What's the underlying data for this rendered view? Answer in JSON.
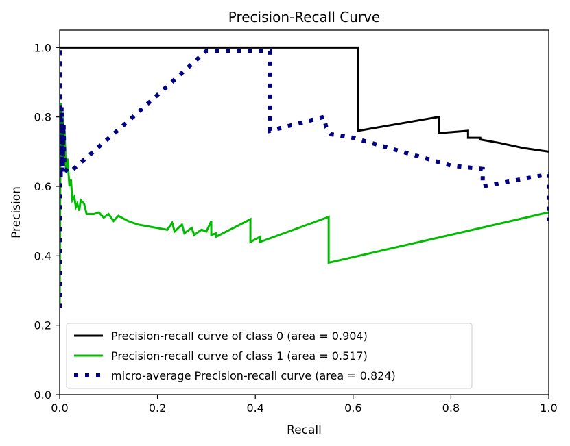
{
  "chart_data": {
    "type": "line",
    "title": "Precision-Recall Curve",
    "xlabel": "Recall",
    "ylabel": "Precision",
    "xlim": [
      0.0,
      1.0
    ],
    "ylim": [
      0.0,
      1.05
    ],
    "x_ticks": [
      0.0,
      0.2,
      0.4,
      0.6,
      0.8,
      1.0
    ],
    "y_ticks": [
      0.0,
      0.2,
      0.4,
      0.6,
      0.8,
      1.0
    ],
    "x_tick_labels": [
      "0.0",
      "0.2",
      "0.4",
      "0.6",
      "0.8",
      "1.0"
    ],
    "y_tick_labels": [
      "0.0",
      "0.2",
      "0.4",
      "0.6",
      "0.8",
      "1.0"
    ],
    "grid": false,
    "legend_position": "lower-left",
    "series": [
      {
        "name": "Precision-recall curve of class 0 (area = 0.904)",
        "color": "#000000",
        "style": "solid",
        "points": [
          [
            0.0,
            1.0
          ],
          [
            0.61,
            1.0
          ],
          [
            0.61,
            0.76
          ],
          [
            0.775,
            0.8
          ],
          [
            0.775,
            0.755
          ],
          [
            0.79,
            0.755
          ],
          [
            0.835,
            0.76
          ],
          [
            0.835,
            0.74
          ],
          [
            0.86,
            0.74
          ],
          [
            0.86,
            0.735
          ],
          [
            0.9,
            0.725
          ],
          [
            0.95,
            0.71
          ],
          [
            1.0,
            0.7
          ]
        ]
      },
      {
        "name": "Precision-recall curve of class 1 (area = 0.517)",
        "color": "#00bb00",
        "style": "solid",
        "points": [
          [
            0.0,
            0.25
          ],
          [
            0.002,
            0.84
          ],
          [
            0.004,
            0.7
          ],
          [
            0.006,
            0.8
          ],
          [
            0.008,
            0.68
          ],
          [
            0.01,
            0.76
          ],
          [
            0.013,
            0.64
          ],
          [
            0.016,
            0.68
          ],
          [
            0.02,
            0.6
          ],
          [
            0.023,
            0.62
          ],
          [
            0.026,
            0.56
          ],
          [
            0.03,
            0.57
          ],
          [
            0.033,
            0.54
          ],
          [
            0.036,
            0.55
          ],
          [
            0.04,
            0.53
          ],
          [
            0.043,
            0.56
          ],
          [
            0.05,
            0.55
          ],
          [
            0.055,
            0.52
          ],
          [
            0.07,
            0.52
          ],
          [
            0.08,
            0.525
          ],
          [
            0.09,
            0.51
          ],
          [
            0.1,
            0.52
          ],
          [
            0.11,
            0.5
          ],
          [
            0.12,
            0.515
          ],
          [
            0.14,
            0.5
          ],
          [
            0.16,
            0.49
          ],
          [
            0.18,
            0.485
          ],
          [
            0.2,
            0.48
          ],
          [
            0.22,
            0.475
          ],
          [
            0.23,
            0.495
          ],
          [
            0.235,
            0.47
          ],
          [
            0.25,
            0.49
          ],
          [
            0.255,
            0.465
          ],
          [
            0.27,
            0.48
          ],
          [
            0.275,
            0.46
          ],
          [
            0.29,
            0.475
          ],
          [
            0.3,
            0.47
          ],
          [
            0.31,
            0.5
          ],
          [
            0.31,
            0.46
          ],
          [
            0.32,
            0.465
          ],
          [
            0.32,
            0.455
          ],
          [
            0.39,
            0.505
          ],
          [
            0.39,
            0.44
          ],
          [
            0.41,
            0.455
          ],
          [
            0.41,
            0.44
          ],
          [
            0.55,
            0.512
          ],
          [
            0.55,
            0.38
          ],
          [
            1.0,
            0.525
          ]
        ]
      },
      {
        "name": "micro-average Precision-recall curve (area = 0.824)",
        "color": "#000080",
        "style": "dotted",
        "points": [
          [
            0.0,
            0.25
          ],
          [
            0.0,
            1.0
          ],
          [
            0.002,
            0.62
          ],
          [
            0.004,
            0.83
          ],
          [
            0.006,
            0.64
          ],
          [
            0.008,
            0.78
          ],
          [
            0.01,
            0.65
          ],
          [
            0.02,
            0.64
          ],
          [
            0.15,
            0.8
          ],
          [
            0.3,
            0.99
          ],
          [
            0.43,
            0.99
          ],
          [
            0.43,
            0.76
          ],
          [
            0.54,
            0.8
          ],
          [
            0.545,
            0.77
          ],
          [
            0.555,
            0.75
          ],
          [
            0.6,
            0.74
          ],
          [
            0.7,
            0.7
          ],
          [
            0.8,
            0.66
          ],
          [
            0.865,
            0.65
          ],
          [
            0.865,
            0.6
          ],
          [
            1.0,
            0.635
          ],
          [
            1.0,
            0.5
          ]
        ]
      }
    ]
  }
}
